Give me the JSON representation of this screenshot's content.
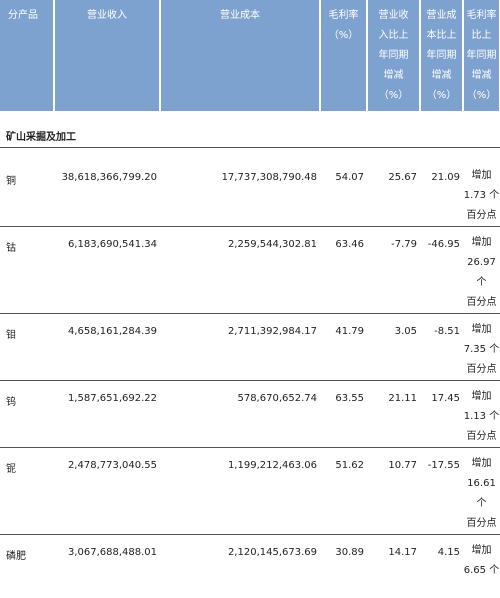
{
  "table": {
    "headers": {
      "product": "分产品",
      "revenue": "营业收入",
      "cost": "营业成本",
      "gross_margin": "毛利率\n（%）",
      "revenue_yoy": "营业收\n入比上\n年同期\n增减\n（%）",
      "cost_yoy": "营业成\n本比上\n年同期\n增减\n（%）",
      "margin_change": "毛利率比上\n年同期增减\n（%）"
    },
    "section_title": "矿山采掘及加工",
    "rows": [
      {
        "product": "铜",
        "revenue": "38,618,366,799.20",
        "cost": "17,737,308,790.48",
        "gross_margin": "54.07",
        "revenue_yoy": "25.67",
        "cost_yoy": "21.09",
        "margin_change": "增加 1.73 个\n百分点"
      },
      {
        "product": "钴",
        "revenue": "6,183,690,541.34",
        "cost": "2,259,544,302.81",
        "gross_margin": "63.46",
        "revenue_yoy": "-7.79",
        "cost_yoy": "-46.95",
        "margin_change": "增加 26.97 个\n百分点"
      },
      {
        "product": "钼",
        "revenue": "4,658,161,284.39",
        "cost": "2,711,392,984.17",
        "gross_margin": "41.79",
        "revenue_yoy": "3.05",
        "cost_yoy": "-8.51",
        "margin_change": "增加 7.35 个\n百分点"
      },
      {
        "product": "钨",
        "revenue": "1,587,651,692.22",
        "cost": "578,670,652.74",
        "gross_margin": "63.55",
        "revenue_yoy": "21.11",
        "cost_yoy": "17.45",
        "margin_change": "增加 1.13 个\n百分点"
      },
      {
        "product": "铌",
        "revenue": "2,478,773,040.55",
        "cost": "1,199,212,463.06",
        "gross_margin": "51.62",
        "revenue_yoy": "10.77",
        "cost_yoy": "-17.55",
        "margin_change": "增加 16.61 个\n百分点"
      },
      {
        "product": "磷肥",
        "revenue": "3,067,688,488.01",
        "cost": "2,120,145,673.69",
        "gross_margin": "30.89",
        "revenue_yoy": "14.17",
        "cost_yoy": "4.15",
        "margin_change": "增加 6.65 个"
      }
    ]
  }
}
